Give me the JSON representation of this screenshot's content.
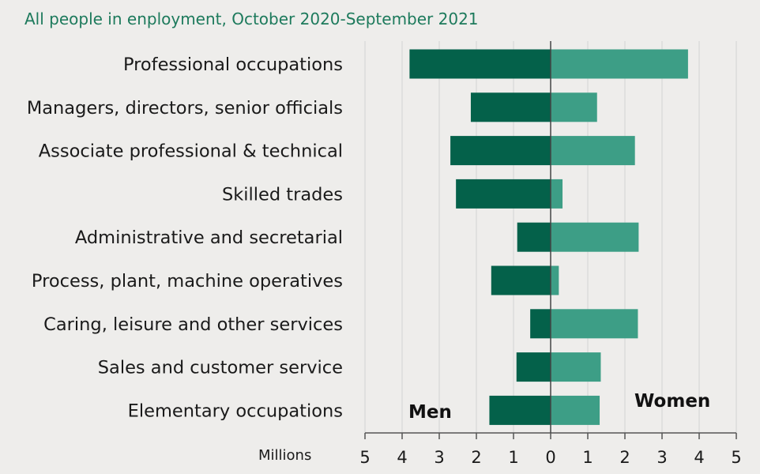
{
  "subtitle": "All people in enployment, October 2020-September 2021",
  "chart_data": {
    "type": "bar",
    "orientation": "horizontal-diverging",
    "subtitle": "All people in enployment, October 2020-September 2021",
    "categories": [
      "Professional occupations",
      "Managers, directors, senior officials",
      "Associate professional & technical",
      "Skilled trades",
      "Administrative and secretarial",
      "Process, plant, machine operatives",
      "Caring, leisure and other services",
      "Sales and customer service",
      "Elementary occupations"
    ],
    "series": [
      {
        "name": "Men",
        "color": "#04614a",
        "values": [
          3.8,
          2.15,
          2.7,
          2.55,
          0.9,
          1.6,
          0.55,
          0.92,
          1.65
        ]
      },
      {
        "name": "Women",
        "color": "#3d9e86",
        "values": [
          3.7,
          1.25,
          2.27,
          0.32,
          2.37,
          0.22,
          2.35,
          1.35,
          1.32
        ]
      }
    ],
    "xlabel": "Millions",
    "xlim": [
      -5,
      5
    ],
    "x_ticks": [
      -5,
      -4,
      -3,
      -2,
      -1,
      0,
      1,
      2,
      3,
      4,
      5
    ],
    "x_tick_labels": [
      "5",
      "4",
      "3",
      "2",
      "1",
      "0",
      "1",
      "2",
      "3",
      "4",
      "5"
    ],
    "gridlines": true,
    "side_labels": {
      "left": "Men",
      "right": "Women"
    }
  }
}
